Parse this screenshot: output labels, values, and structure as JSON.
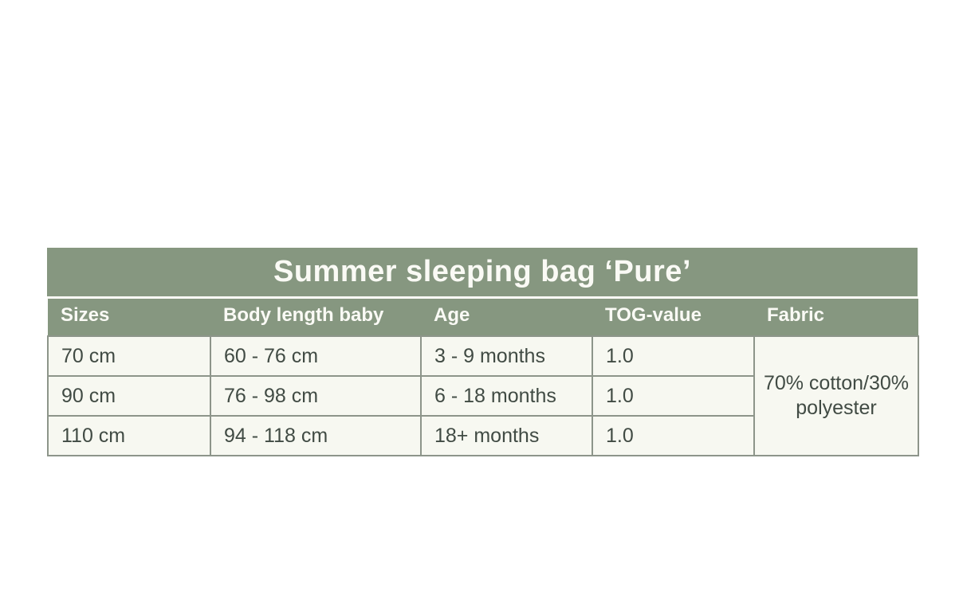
{
  "table": {
    "title": "Summer sleeping bag ‘Pure’",
    "columns": [
      "Sizes",
      "Body length baby",
      "Age",
      "TOG-value",
      "Fabric"
    ],
    "rows": [
      {
        "size": "70 cm",
        "body_length": "60 - 76 cm",
        "age": "3 - 9 months",
        "tog": "1.0"
      },
      {
        "size": "90 cm",
        "body_length": "76 - 98 cm",
        "age": "6 - 18 months",
        "tog": "1.0"
      },
      {
        "size": "110 cm",
        "body_length": "94 - 118 cm",
        "age": "18+ months",
        "tog": "1.0"
      }
    ],
    "fabric": "70% cotton/30% polyester"
  },
  "colors": {
    "band_green": "#869780",
    "band_text": "#fafaf5",
    "cell_background": "#f7f8f1",
    "cell_text": "#414b44",
    "grid_border": "#8d958a",
    "page_background": "#ffffff"
  },
  "chart_data": {
    "type": "table",
    "title": "Summer sleeping bag ‘Pure’",
    "columns": [
      "Sizes",
      "Body length baby",
      "Age",
      "TOG-value",
      "Fabric"
    ],
    "rows": [
      [
        "70 cm",
        "60 - 76 cm",
        "3 - 9 months",
        "1.0",
        "70% cotton/30% polyester"
      ],
      [
        "90 cm",
        "76 - 98 cm",
        "6 - 18 months",
        "1.0",
        "70% cotton/30% polyester"
      ],
      [
        "110 cm",
        "94 - 118 cm",
        "18+ months",
        "1.0",
        "70% cotton/30% polyester"
      ]
    ],
    "layout_notes": "Fabric cell is merged (rowspan 3) across all three data rows; title band and header row share a sage-green background with white bold text; data grid has off-white cells with gray-green 2px borders."
  }
}
